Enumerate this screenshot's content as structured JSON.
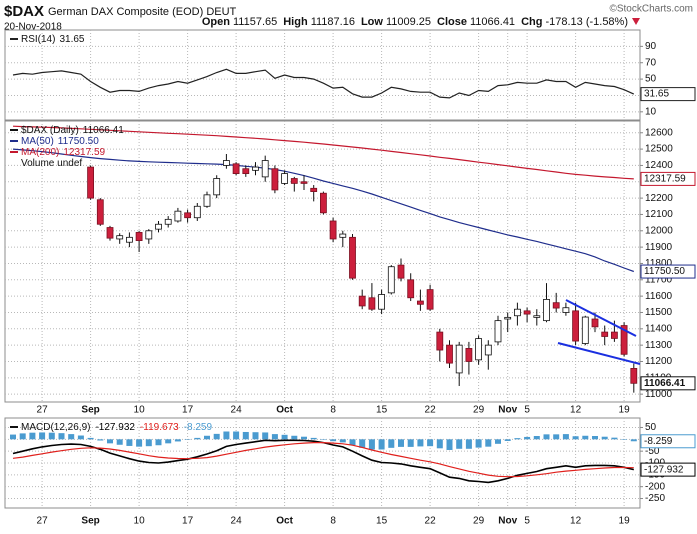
{
  "header": {
    "symbol": "$DAX",
    "name": "German DAX Composite (EOD) DEUT",
    "date": "20-Nov-2018",
    "source": "©StockCharts.com",
    "quote": [
      {
        "label": "Open",
        "value": "11157.65"
      },
      {
        "label": "High",
        "value": "11187.16"
      },
      {
        "label": "Low",
        "value": "11009.25"
      },
      {
        "label": "Close",
        "value": "11066.41"
      },
      {
        "label": "Chg",
        "value": "-178.13 (-1.58%)"
      }
    ]
  },
  "chart_data": [
    {
      "type": "line",
      "title": "RSI(14)",
      "ylim": [
        0,
        110
      ],
      "yticks": [
        90,
        70,
        50,
        30,
        10
      ],
      "grid": true,
      "series": [
        {
          "color": "#222222",
          "end_box": true,
          "values": [
            55,
            57,
            56,
            58,
            59,
            60,
            58,
            56,
            47,
            40,
            34,
            36,
            36,
            35,
            39,
            42,
            44,
            47,
            45,
            49,
            53,
            58,
            62,
            57,
            57,
            59,
            61,
            51,
            55,
            52,
            52,
            50,
            45,
            39,
            40,
            32,
            28,
            28,
            33,
            40,
            38,
            35,
            34,
            34,
            28,
            27,
            33,
            30,
            36,
            35,
            42,
            43,
            46,
            45,
            45,
            49,
            47,
            47,
            40,
            46,
            44,
            42,
            41,
            37,
            31.65
          ]
        }
      ]
    },
    {
      "type": "candlestick",
      "name": "$DAX (Daily)",
      "note": "Volume undef",
      "grid": true,
      "close_box": true,
      "up_color": "#ffffff",
      "down_color": "#cc1f3c",
      "ylim": [
        10952,
        12672
      ],
      "yticks": [
        12600,
        12500,
        12400,
        12300,
        12200,
        12100,
        12000,
        11900,
        11800,
        11700,
        11600,
        11500,
        11400,
        11300,
        11200,
        11100,
        11000
      ],
      "categories": [
        null,
        null,
        null,
        "27",
        null,
        null,
        null,
        null,
        "Sep",
        null,
        null,
        null,
        null,
        "10",
        null,
        null,
        null,
        null,
        "17",
        null,
        null,
        null,
        null,
        "24",
        null,
        null,
        null,
        null,
        "Oct",
        null,
        null,
        null,
        null,
        "8",
        null,
        null,
        null,
        null,
        "15",
        null,
        null,
        null,
        null,
        "22",
        null,
        null,
        null,
        null,
        "29",
        null,
        null,
        "Nov",
        null,
        "5",
        null,
        null,
        null,
        null,
        "12",
        null,
        null,
        null,
        null,
        "19",
        null
      ],
      "open": [
        null,
        null,
        null,
        null,
        null,
        null,
        null,
        null,
        12390,
        12190,
        12020,
        11950,
        11930,
        11990,
        11950,
        12010,
        12040,
        12060,
        12110,
        12080,
        12150,
        12220,
        12400,
        12410,
        12380,
        12370,
        12330,
        12380,
        12290,
        12320,
        12300,
        12260,
        12230,
        12060,
        11960,
        11960,
        11600,
        11590,
        11520,
        11620,
        11790,
        11700,
        11570,
        11640,
        11380,
        11300,
        11130,
        11280,
        11210,
        11240,
        11320,
        11460,
        11480,
        11510,
        11470,
        11450,
        11560,
        11500,
        11510,
        11310,
        11460,
        11380,
        11380,
        11420,
        11157.65
      ],
      "high": [
        null,
        null,
        null,
        null,
        null,
        null,
        null,
        null,
        12400,
        12200,
        12030,
        11985,
        11990,
        12000,
        12010,
        12060,
        12090,
        12140,
        12130,
        12170,
        12240,
        12340,
        12470,
        12420,
        12400,
        12420,
        12460,
        12400,
        12370,
        12330,
        12340,
        12280,
        12240,
        12080,
        12000,
        11980,
        11640,
        11680,
        11640,
        11790,
        11830,
        11740,
        11640,
        11670,
        11400,
        11330,
        11320,
        11320,
        11360,
        11330,
        11480,
        11500,
        11560,
        11530,
        11520,
        11680,
        11620,
        11560,
        11560,
        11480,
        11500,
        11420,
        11450,
        11440,
        11187.16
      ],
      "low": [
        null,
        null,
        null,
        null,
        null,
        null,
        null,
        null,
        12190,
        12030,
        11940,
        11920,
        11900,
        11870,
        11920,
        11990,
        12020,
        12050,
        12050,
        12060,
        12140,
        12200,
        12380,
        12340,
        12330,
        12340,
        12300,
        12230,
        12280,
        12240,
        12250,
        12180,
        12100,
        11930,
        11900,
        11700,
        11520,
        11510,
        11490,
        11610,
        11690,
        11570,
        11510,
        11510,
        11200,
        11160,
        11050,
        11120,
        11180,
        11150,
        11300,
        11380,
        11420,
        11440,
        11420,
        11440,
        11500,
        11480,
        11300,
        11300,
        11380,
        11300,
        11320,
        11230,
        11009.25
      ],
      "close": [
        null,
        null,
        null,
        null,
        null,
        null,
        null,
        null,
        12200,
        12040,
        11955,
        11970,
        11960,
        11940,
        12000,
        12040,
        12070,
        12120,
        12080,
        12150,
        12220,
        12320,
        12430,
        12350,
        12350,
        12390,
        12430,
        12250,
        12350,
        12290,
        12290,
        12240,
        12110,
        11950,
        11980,
        11710,
        11540,
        11520,
        11610,
        11780,
        11710,
        11590,
        11550,
        11520,
        11270,
        11190,
        11300,
        11200,
        11340,
        11300,
        11450,
        11470,
        11520,
        11490,
        11480,
        11580,
        11527,
        11529,
        11325,
        11472,
        11412,
        11353,
        11341,
        11244,
        11066.41
      ],
      "series": [
        {
          "name": "MA(50)",
          "color": "#1f2d8c",
          "end_box": true,
          "last_value_label": "11750.50",
          "values": [
            12500,
            12495,
            12490,
            12485,
            12478,
            12470,
            12462,
            12455,
            12448,
            12442,
            12437,
            12432,
            12428,
            12425,
            12422,
            12420,
            12418,
            12416,
            12414,
            12412,
            12410,
            12408,
            12405,
            12400,
            12395,
            12390,
            12383,
            12375,
            12365,
            12352,
            12338,
            12322,
            12305,
            12290,
            12275,
            12260,
            12243,
            12225,
            12205,
            12185,
            12165,
            12145,
            12125,
            12105,
            12085,
            12068,
            12050,
            12035,
            12020,
            12005,
            11990,
            11975,
            11962,
            11948,
            11935,
            11920,
            11905,
            11890,
            11875,
            11860,
            11840,
            11815,
            11795,
            11772,
            11750.5
          ]
        },
        {
          "name": "MA(200)",
          "color": "#c4182e",
          "end_box": true,
          "values": [
            12640,
            12638,
            12636,
            12634,
            12632,
            12630,
            12627,
            12624,
            12621,
            12618,
            12615,
            12612,
            12609,
            12606,
            12603,
            12600,
            12597,
            12594,
            12591,
            12588,
            12585,
            12582,
            12578,
            12574,
            12570,
            12566,
            12562,
            12557,
            12552,
            12547,
            12542,
            12537,
            12531,
            12525,
            12519,
            12513,
            12507,
            12500,
            12493,
            12486,
            12479,
            12472,
            12465,
            12458,
            12450,
            12443,
            12436,
            12428,
            12420,
            12413,
            12405,
            12398,
            12390,
            12382,
            12375,
            12367,
            12360,
            12352,
            12345,
            12340,
            12335,
            12330,
            12326,
            12321,
            12317.59
          ]
        }
      ]
    },
    {
      "type": "macd",
      "title": "MACD(12,26,9)",
      "ylim": [
        -290,
        90
      ],
      "yticks": [
        50,
        0,
        -50,
        -100,
        -150,
        -200,
        -250
      ],
      "grid": true,
      "series": [
        {
          "kind": "line",
          "color": "#000000",
          "end_box": true,
          "values": [
            -60,
            -50,
            -40,
            -32,
            -26,
            -22,
            -20,
            -22,
            -30,
            -42,
            -58,
            -70,
            -82,
            -92,
            -98,
            -100,
            -96,
            -90,
            -84,
            -74,
            -62,
            -48,
            -30,
            -22,
            -16,
            -10,
            -4,
            -6,
            -4,
            -4,
            -5,
            -8,
            -14,
            -24,
            -32,
            -50,
            -70,
            -88,
            -98,
            -100,
            -104,
            -112,
            -118,
            -124,
            -142,
            -160,
            -165,
            -175,
            -178,
            -182,
            -175,
            -165,
            -152,
            -144,
            -136,
            -124,
            -118,
            -112,
            -118,
            -112,
            -110,
            -110,
            -112,
            -118,
            -127.932
          ]
        },
        {
          "kind": "line",
          "color": "#e0201c",
          "values": [
            -80,
            -75,
            -68,
            -61,
            -54,
            -48,
            -42,
            -38,
            -36,
            -37,
            -41,
            -47,
            -54,
            -61,
            -69,
            -75,
            -79,
            -81,
            -82,
            -80,
            -77,
            -71,
            -63,
            -55,
            -47,
            -40,
            -33,
            -28,
            -23,
            -19,
            -16,
            -14,
            -14,
            -16,
            -19,
            -25,
            -34,
            -45,
            -55,
            -64,
            -72,
            -80,
            -88,
            -95,
            -104,
            -115,
            -125,
            -135,
            -143,
            -151,
            -156,
            -158,
            -157,
            -154,
            -150,
            -145,
            -139,
            -134,
            -131,
            -127,
            -124,
            -121,
            -119,
            -119,
            -119.673
          ]
        },
        {
          "kind": "bar",
          "color": "#4a9bd0",
          "end_box": true,
          "values": [
            20,
            25,
            28,
            29,
            28,
            26,
            22,
            16,
            6,
            -5,
            -17,
            -23,
            -28,
            -31,
            -29,
            -25,
            -17,
            -9,
            -2,
            6,
            15,
            23,
            33,
            33,
            31,
            30,
            29,
            22,
            19,
            15,
            11,
            6,
            0,
            -8,
            -13,
            -25,
            -36,
            -43,
            -43,
            -36,
            -32,
            -32,
            -30,
            -29,
            -38,
            -45,
            -40,
            -40,
            -35,
            -31,
            -19,
            -7,
            5,
            10,
            14,
            21,
            21,
            22,
            13,
            15,
            14,
            11,
            7,
            1,
            -8.259
          ]
        }
      ]
    }
  ]
}
